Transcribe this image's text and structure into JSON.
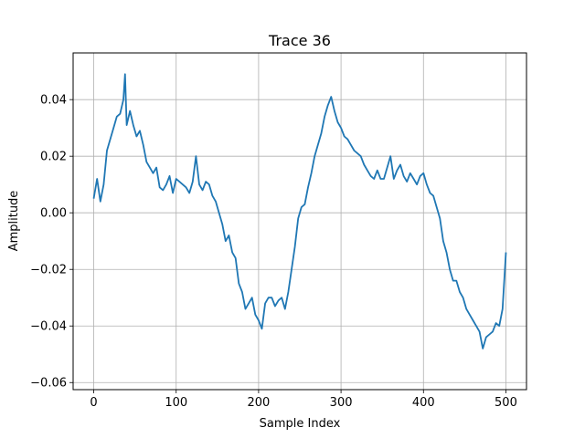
{
  "chart_data": {
    "type": "line",
    "title": "Trace 36",
    "xlabel": "Sample Index",
    "ylabel": "Amplitude",
    "xlim": [
      -25,
      525
    ],
    "ylim": [
      -0.0625,
      0.0565
    ],
    "xticks": [
      0,
      100,
      200,
      300,
      400,
      500
    ],
    "xtick_labels": [
      "0",
      "100",
      "200",
      "300",
      "400",
      "500"
    ],
    "yticks": [
      -0.06,
      -0.04,
      -0.02,
      0.0,
      0.02,
      0.04
    ],
    "ytick_labels": [
      "−0.06",
      "−0.04",
      "−0.02",
      "0.00",
      "0.02",
      "0.04"
    ],
    "grid": true,
    "series": [
      {
        "color": "#1f77b4",
        "x": [
          0,
          4,
          8,
          12,
          16,
          20,
          24,
          28,
          32,
          36,
          38,
          40,
          44,
          48,
          52,
          56,
          60,
          64,
          68,
          72,
          76,
          80,
          84,
          88,
          92,
          96,
          100,
          104,
          108,
          112,
          116,
          120,
          124,
          128,
          132,
          136,
          140,
          144,
          148,
          152,
          156,
          160,
          164,
          168,
          172,
          176,
          180,
          184,
          188,
          192,
          196,
          200,
          204,
          208,
          212,
          216,
          220,
          224,
          228,
          232,
          236,
          240,
          244,
          248,
          252,
          256,
          260,
          264,
          268,
          272,
          276,
          280,
          284,
          288,
          292,
          296,
          300,
          304,
          308,
          312,
          316,
          320,
          324,
          328,
          332,
          336,
          340,
          344,
          348,
          352,
          356,
          360,
          364,
          368,
          372,
          376,
          380,
          384,
          388,
          392,
          396,
          400,
          404,
          408,
          412,
          416,
          420,
          424,
          428,
          432,
          436,
          440,
          444,
          448,
          452,
          456,
          460,
          464,
          468,
          472,
          476,
          480,
          484,
          488,
          492,
          496,
          500
        ],
        "y": [
          0.005,
          0.012,
          0.004,
          0.01,
          0.022,
          0.026,
          0.03,
          0.034,
          0.035,
          0.04,
          0.049,
          0.031,
          0.036,
          0.031,
          0.027,
          0.029,
          0.024,
          0.018,
          0.016,
          0.014,
          0.016,
          0.009,
          0.008,
          0.01,
          0.013,
          0.007,
          0.012,
          0.011,
          0.01,
          0.009,
          0.007,
          0.011,
          0.02,
          0.01,
          0.008,
          0.011,
          0.01,
          0.006,
          0.004,
          0.0,
          -0.004,
          -0.01,
          -0.008,
          -0.014,
          -0.016,
          -0.025,
          -0.028,
          -0.034,
          -0.032,
          -0.03,
          -0.036,
          -0.038,
          -0.041,
          -0.032,
          -0.03,
          -0.03,
          -0.033,
          -0.031,
          -0.03,
          -0.034,
          -0.028,
          -0.02,
          -0.012,
          -0.002,
          0.002,
          0.003,
          0.009,
          0.014,
          0.02,
          0.024,
          0.028,
          0.034,
          0.038,
          0.041,
          0.036,
          0.032,
          0.03,
          0.027,
          0.026,
          0.024,
          0.022,
          0.021,
          0.02,
          0.017,
          0.015,
          0.013,
          0.012,
          0.015,
          0.012,
          0.012,
          0.016,
          0.02,
          0.012,
          0.015,
          0.017,
          0.013,
          0.011,
          0.014,
          0.012,
          0.01,
          0.013,
          0.014,
          0.01,
          0.007,
          0.006,
          0.002,
          -0.002,
          -0.01,
          -0.014,
          -0.02,
          -0.024,
          -0.024,
          -0.028,
          -0.03,
          -0.034,
          -0.036,
          -0.038,
          -0.04,
          -0.042,
          -0.048,
          -0.044,
          -0.043,
          -0.042,
          -0.039,
          -0.04,
          -0.034,
          -0.014
        ]
      }
    ]
  }
}
